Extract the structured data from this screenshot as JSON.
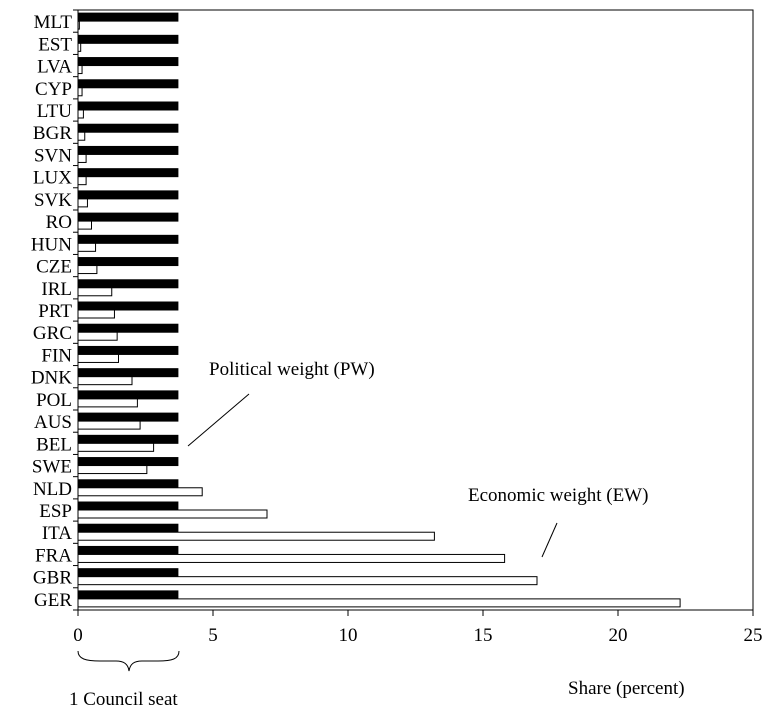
{
  "chart_data": {
    "type": "bar",
    "orientation": "horizontal",
    "categories": [
      "MLT",
      "EST",
      "LVA",
      "CYP",
      "LTU",
      "BGR",
      "SVN",
      "LUX",
      "SVK",
      "RO",
      "HUN",
      "CZE",
      "IRL",
      "PRT",
      "GRC",
      "FIN",
      "DNK",
      "POL",
      "AUS",
      "BEL",
      "SWE",
      "NLD",
      "ESP",
      "ITA",
      "FRA",
      "GBR",
      "GER"
    ],
    "series": [
      {
        "key": "pw",
        "fill": "#000000",
        "values": [
          3.7,
          3.7,
          3.7,
          3.7,
          3.7,
          3.7,
          3.7,
          3.7,
          3.7,
          3.7,
          3.7,
          3.7,
          3.7,
          3.7,
          3.7,
          3.7,
          3.7,
          3.7,
          3.7,
          3.7,
          3.7,
          3.7,
          3.7,
          3.7,
          3.7,
          3.7,
          3.7
        ]
      },
      {
        "key": "ew",
        "fill": "#ffffff",
        "values": [
          0.05,
          0.1,
          0.15,
          0.15,
          0.2,
          0.25,
          0.3,
          0.3,
          0.35,
          0.5,
          0.65,
          0.7,
          1.25,
          1.35,
          1.45,
          1.5,
          2.0,
          2.2,
          2.3,
          2.8,
          2.55,
          4.6,
          7.0,
          13.2,
          15.8,
          17.0,
          22.3
        ]
      }
    ],
    "xlabel": "Share (percent)",
    "xlim": [
      0,
      25
    ],
    "xticks": [
      "0",
      "5",
      "10",
      "15",
      "20",
      "25"
    ],
    "grid": false,
    "annotations": {
      "political_weight": "Political weight (PW)",
      "economic_weight": "Economic weight (EW)",
      "council_seat": "1 Council seat"
    },
    "colors": {
      "axis": "#000000",
      "dark_bar": "#000000",
      "light_bar": "#ffffff"
    }
  }
}
